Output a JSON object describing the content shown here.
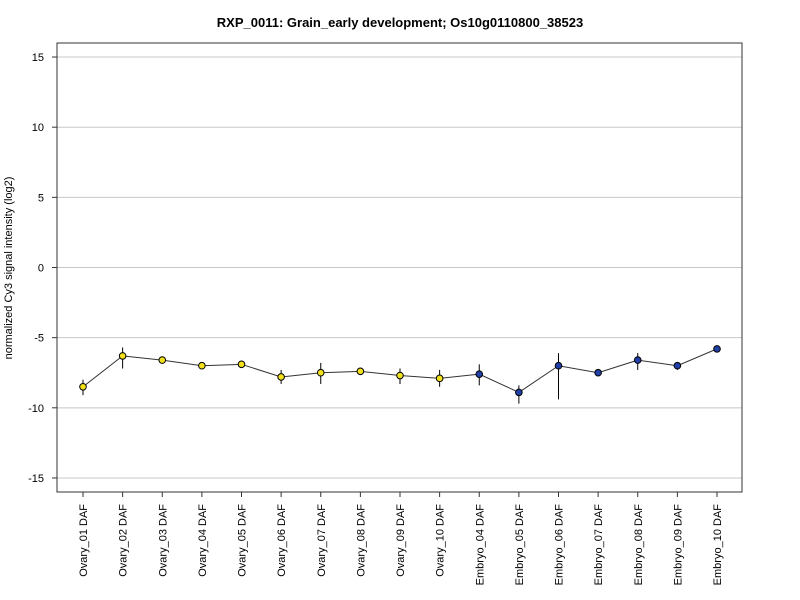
{
  "chart_data": {
    "type": "line",
    "title": "RXP_0011: Grain_early development; Os10g0110800_38523",
    "ylabel": "normalized Cy3 signal intensity (log2)",
    "xlabel": "",
    "ylim": [
      -16,
      16
    ],
    "yticks": [
      -15,
      -10,
      -5,
      0,
      5,
      10,
      15
    ],
    "grid": "horizontal",
    "categories": [
      "Ovary_01 DAF",
      "Ovary_02 DAF",
      "Ovary_03 DAF",
      "Ovary_04 DAF",
      "Ovary_05 DAF",
      "Ovary_06 DAF",
      "Ovary_07 DAF",
      "Ovary_08 DAF",
      "Ovary_09 DAF",
      "Ovary_10 DAF",
      "Embryo_04 DAF",
      "Embryo_05 DAF",
      "Embryo_06 DAF",
      "Embryo_07 DAF",
      "Embryo_08 DAF",
      "Embryo_09 DAF",
      "Embryo_10 DAF"
    ],
    "values": [
      -8.5,
      -6.3,
      -6.6,
      -7.0,
      -6.9,
      -7.8,
      -7.5,
      -7.4,
      -7.7,
      -7.9,
      -7.6,
      -8.9,
      -7.0,
      -7.5,
      -6.6,
      -7.0,
      -5.8
    ],
    "error_low": [
      -9.1,
      -7.2,
      -6.7,
      -7.1,
      -7.1,
      -8.3,
      -8.3,
      -7.6,
      -8.3,
      -8.5,
      -8.4,
      -9.7,
      -9.4,
      -7.6,
      -7.3,
      -7.3,
      -5.9
    ],
    "error_high": [
      -8.0,
      -5.7,
      -6.5,
      -6.9,
      -6.7,
      -7.3,
      -6.8,
      -7.2,
      -7.2,
      -7.3,
      -6.9,
      -8.4,
      -6.1,
      -7.4,
      -6.1,
      -6.8,
      -5.7
    ],
    "point_colors": [
      "#f2e01a",
      "#f2e01a",
      "#f2e01a",
      "#f2e01a",
      "#f2e01a",
      "#f2e01a",
      "#f2e01a",
      "#f2e01a",
      "#f2e01a",
      "#f2e01a",
      "#2040a8",
      "#2040a8",
      "#2040a8",
      "#2040a8",
      "#2040a8",
      "#2040a8",
      "#2040a8"
    ],
    "line_color": "#333333",
    "grid_color": "#c8c8c8",
    "frame_color": "#333333"
  }
}
